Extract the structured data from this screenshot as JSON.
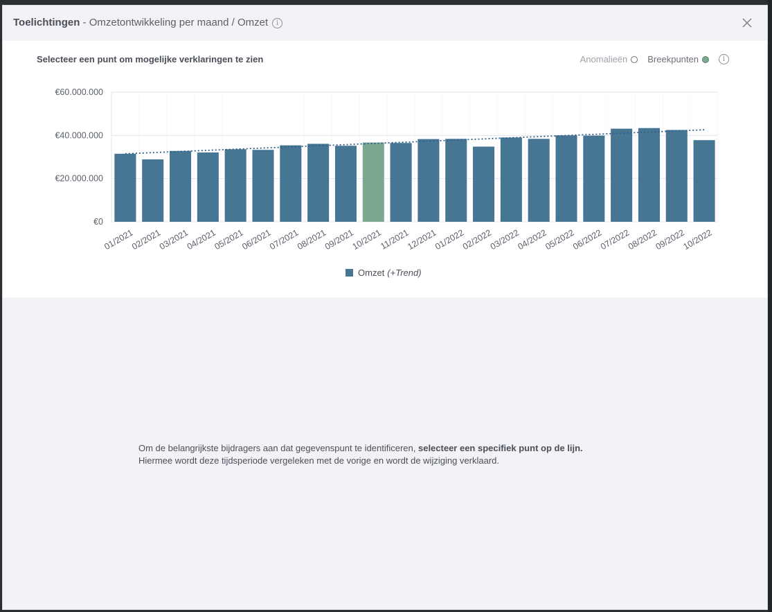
{
  "header": {
    "title_strong": "Toelichtingen",
    "title_rest": " - Omzetontwikkeling per maand / Omzet",
    "info_icon": "info-icon",
    "close_icon": "close-icon"
  },
  "panel": {
    "subtitle": "Selecteer een punt om mogelijke verklaringen te zien",
    "toggle_anomalies": "Anomalieën",
    "toggle_breakpoints": "Breekpunten"
  },
  "legend": {
    "series": "Omzet",
    "trend": "(+Trend)"
  },
  "empty_state": {
    "line1_prefix": "Om de belangrijkste bijdragers aan dat gegevenspunt te identificeren, ",
    "line1_bold": "selecteer een specifiek punt op de lijn.",
    "line2": "Hiermee wordt deze tijdsperiode vergeleken met de vorige en wordt de wijziging verklaard."
  },
  "colors": {
    "bar": "#477694",
    "bar_highlight": "#7aa890",
    "trend": "#2f5f86",
    "grid": "#e3e5ea",
    "axis_text": "#5a5f6a"
  },
  "chart_data": {
    "type": "bar",
    "categories": [
      "01/2021",
      "02/2021",
      "03/2021",
      "04/2021",
      "05/2021",
      "06/2021",
      "07/2021",
      "08/2021",
      "09/2021",
      "10/2021",
      "11/2021",
      "12/2021",
      "01/2022",
      "02/2022",
      "03/2022",
      "04/2022",
      "05/2022",
      "06/2022",
      "07/2022",
      "08/2022",
      "09/2022",
      "10/2022"
    ],
    "series": [
      {
        "name": "Omzet",
        "values": [
          31500000,
          28900000,
          32800000,
          32100000,
          33600000,
          33300000,
          35400000,
          36100000,
          35200000,
          36700000,
          36500000,
          38300000,
          38400000,
          34800000,
          39000000,
          38400000,
          40000000,
          39900000,
          43100000,
          43400000,
          42500000,
          37800000
        ]
      }
    ],
    "trend": {
      "start": 31500000,
      "end": 42600000
    },
    "highlighted_category": "10/2021",
    "ylim": [
      0,
      60000000
    ],
    "y_ticks": [
      0,
      20000000,
      40000000,
      60000000
    ],
    "y_tick_labels": [
      "€0",
      "€20.000.000",
      "€40.000.000",
      "€60.000.000"
    ],
    "grid": true,
    "legend_position": "bottom"
  }
}
